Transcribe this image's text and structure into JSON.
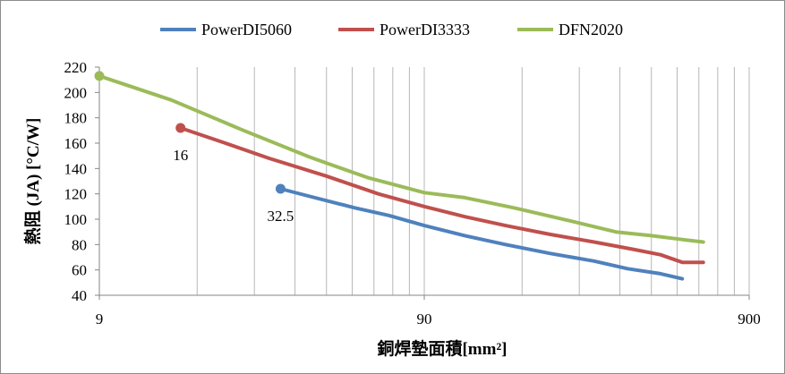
{
  "chart_data": {
    "type": "line",
    "xscale": "log",
    "xlabel": "銅焊墊面積[mm²]",
    "ylabel": "熱阻 (JA) [°C/W]",
    "xlim": [
      9,
      900
    ],
    "ylim": [
      40,
      220
    ],
    "x_ticks": [
      "9",
      "90",
      "900"
    ],
    "y_ticks": [
      "40",
      "60",
      "80",
      "100",
      "120",
      "140",
      "160",
      "180",
      "200",
      "220"
    ],
    "grid": {
      "vertical_minor": true,
      "horizontal": false
    },
    "legend_position": "top",
    "series": [
      {
        "name": "PowerDI5060",
        "color": "#4f81bd",
        "x": [
          32.5,
          40,
          55,
          70,
          90,
          120,
          160,
          220,
          300,
          380,
          480,
          560
        ],
        "y": [
          124,
          118,
          109,
          103,
          95,
          87,
          80,
          73,
          67,
          61,
          57,
          53
        ]
      },
      {
        "name": "PowerDI3333",
        "color": "#c0504d",
        "x": [
          16,
          22,
          30,
          45,
          65,
          90,
          120,
          160,
          220,
          300,
          400,
          480,
          560,
          650
        ],
        "y": [
          172,
          160,
          148,
          134,
          120,
          110,
          102,
          95,
          88,
          82,
          76,
          72,
          66,
          66
        ]
      },
      {
        "name": "DFN2020",
        "color": "#9bbb59",
        "x": [
          9,
          15,
          25,
          40,
          60,
          90,
          120,
          170,
          250,
          350,
          450,
          560,
          650
        ],
        "y": [
          213,
          194,
          170,
          149,
          133,
          121,
          117,
          109,
          99,
          90,
          87,
          84,
          82
        ]
      }
    ],
    "data_labels": [
      {
        "series": "PowerDI3333",
        "text": "16"
      },
      {
        "series": "PowerDI5060",
        "text": "32.5"
      }
    ]
  }
}
